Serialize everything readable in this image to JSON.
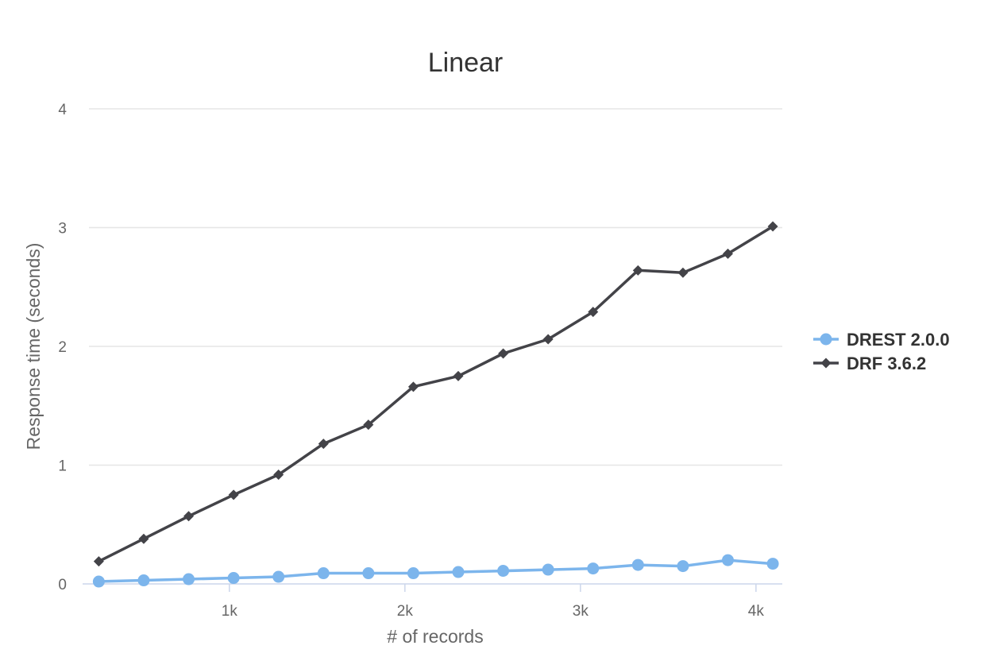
{
  "chart_data": {
    "type": "line",
    "title": "Linear",
    "xlabel": "# of records",
    "ylabel": "Response time (seconds)",
    "xlim": [
      200,
      4150
    ],
    "ylim": [
      0,
      4
    ],
    "x_ticks": [
      {
        "value": 1000,
        "label": "1k"
      },
      {
        "value": 2000,
        "label": "2k"
      },
      {
        "value": 3000,
        "label": "3k"
      },
      {
        "value": 4000,
        "label": "4k"
      }
    ],
    "y_ticks": [
      {
        "value": 0,
        "label": "0"
      },
      {
        "value": 1,
        "label": "1"
      },
      {
        "value": 2,
        "label": "2"
      },
      {
        "value": 3,
        "label": "3"
      },
      {
        "value": 4,
        "label": "4"
      }
    ],
    "grid": true,
    "legend_position": "right",
    "x": [
      256,
      512,
      768,
      1024,
      1280,
      1536,
      1792,
      2048,
      2304,
      2560,
      2816,
      3072,
      3328,
      3584,
      3840,
      4096
    ],
    "series": [
      {
        "name": "DREST 2.0.0",
        "color": "#7cb5ec",
        "marker": "circle",
        "values": [
          0.02,
          0.03,
          0.04,
          0.05,
          0.06,
          0.09,
          0.09,
          0.09,
          0.1,
          0.11,
          0.12,
          0.13,
          0.16,
          0.15,
          0.2,
          0.17
        ]
      },
      {
        "name": "DRF 3.6.2",
        "color": "#434348",
        "marker": "diamond",
        "values": [
          0.19,
          0.38,
          0.57,
          0.75,
          0.92,
          1.18,
          1.34,
          1.66,
          1.75,
          1.94,
          2.06,
          2.29,
          2.64,
          2.62,
          2.78,
          3.01
        ]
      }
    ]
  }
}
